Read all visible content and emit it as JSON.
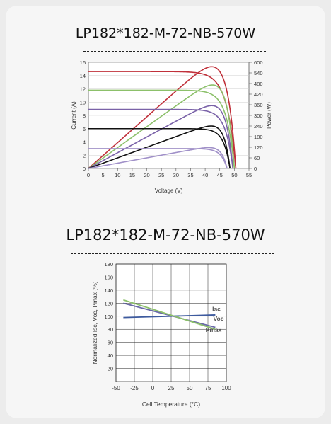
{
  "page": {
    "title_1": "LP182*182-M-72-NB-570W",
    "title_2": "LP182*182-M-72-NB-570W"
  },
  "chart_data": [
    {
      "type": "line",
      "xlabel": "Voltage (V)",
      "ylabel": "Current (A)",
      "y2label": "Power (W)",
      "xlim": [
        0,
        55
      ],
      "ylim": [
        0,
        16
      ],
      "y2lim": [
        0,
        600
      ],
      "xticks": [
        0,
        5,
        10,
        15,
        20,
        25,
        30,
        35,
        40,
        45,
        50,
        55
      ],
      "yticks": [
        0,
        2,
        4,
        6,
        8,
        10,
        12,
        14,
        16
      ],
      "y2ticks": [
        0,
        60,
        120,
        180,
        240,
        300,
        360,
        420,
        480,
        540,
        600
      ],
      "grid": true,
      "series": [
        {
          "color": "#c0303a",
          "isc": 14.6,
          "vmp": 42.2,
          "voc": 50.5,
          "pmax": 575
        },
        {
          "color": "#8cc06a",
          "isc": 11.8,
          "vmp": 42.4,
          "voc": 50.0,
          "pmax": 472
        },
        {
          "color": "#7a62a8",
          "isc": 8.9,
          "vmp": 42.5,
          "voc": 49.5,
          "pmax": 355
        },
        {
          "color": "#111111",
          "isc": 6.0,
          "vmp": 42.0,
          "voc": 48.5,
          "pmax": 240
        },
        {
          "color": "#a090c8",
          "isc": 3.0,
          "vmp": 41.5,
          "voc": 47.5,
          "pmax": 118
        }
      ]
    },
    {
      "type": "line",
      "xlabel": "Cell Temperature (°C)",
      "ylabel": "Normalized Isc, Voc, Pmax (%)",
      "xlim": [
        -50,
        100
      ],
      "ylim": [
        0,
        180
      ],
      "xticks": [
        -50,
        -25,
        0,
        25,
        50,
        75,
        100
      ],
      "yticks": [
        20,
        40,
        60,
        80,
        100,
        120,
        140,
        160,
        180
      ],
      "grid": true,
      "series": [
        {
          "name": "Isc",
          "color": "#3d5a9e",
          "x": [
            -40,
            85
          ],
          "y": [
            98,
            102
          ]
        },
        {
          "name": "Voc",
          "color": "#6a6aa8",
          "x": [
            -40,
            85
          ],
          "y": [
            120,
            83
          ]
        },
        {
          "name": "Pmax",
          "color": "#8cc06a",
          "x": [
            -40,
            85
          ],
          "y": [
            125,
            80
          ]
        }
      ]
    }
  ]
}
